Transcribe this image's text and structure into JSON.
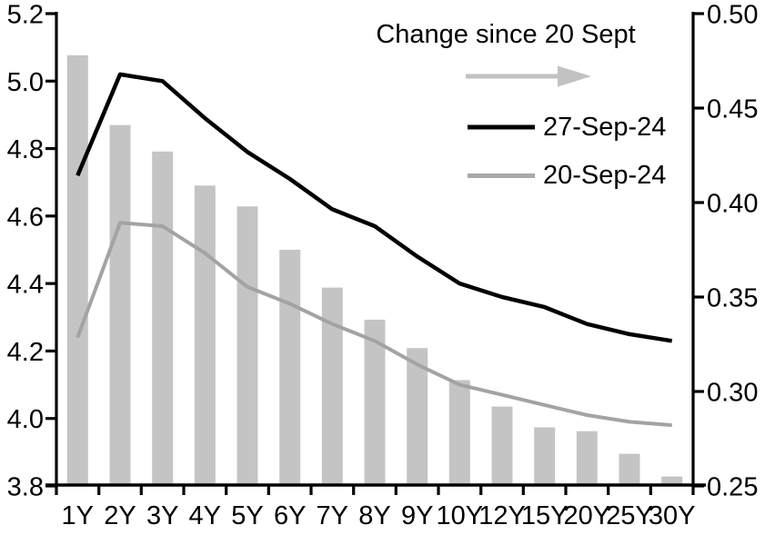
{
  "chart_data": {
    "type": "combo",
    "categories": [
      "1Y",
      "2Y",
      "3Y",
      "4Y",
      "5Y",
      "6Y",
      "7Y",
      "8Y",
      "9Y",
      "10Y",
      "12Y",
      "15Y",
      "20Y",
      "25Y",
      "30Y"
    ],
    "series": [
      {
        "name": "Change since 20 Sept",
        "type": "bar",
        "axis": "right",
        "color": "#c4c4c4",
        "values": [
          0.478,
          0.441,
          0.427,
          0.409,
          0.398,
          0.375,
          0.355,
          0.338,
          0.323,
          0.306,
          0.292,
          0.281,
          0.279,
          0.267,
          0.255
        ]
      },
      {
        "name": "27-Sep-24",
        "type": "line",
        "axis": "left",
        "color": "#000000",
        "values": [
          4.72,
          5.02,
          5.0,
          4.89,
          4.79,
          4.71,
          4.62,
          4.57,
          4.48,
          4.4,
          4.36,
          4.33,
          4.28,
          4.25,
          4.23
        ]
      },
      {
        "name": "20-Sep-24",
        "type": "line",
        "axis": "left",
        "color": "#a3a3a3",
        "values": [
          4.24,
          4.58,
          4.57,
          4.49,
          4.39,
          4.34,
          4.28,
          4.23,
          4.16,
          4.1,
          4.07,
          4.04,
          4.01,
          3.99,
          3.98
        ]
      }
    ],
    "left_axis": {
      "min": 3.8,
      "max": 5.2,
      "tick_step": 0.2,
      "tick_labels": [
        "5.2",
        "5.0",
        "4.8",
        "4.6",
        "4.4",
        "4.2",
        "4.0",
        "3.8"
      ]
    },
    "right_axis": {
      "min": 0.25,
      "max": 0.5,
      "tick_step": 0.05,
      "tick_labels": [
        "0.50",
        "0.45",
        "0.40",
        "0.35",
        "0.30",
        "0.25"
      ]
    },
    "legend": {
      "title": "Change since 20 Sept",
      "arrow_color": "#c2c2c2",
      "position": "top-right-inside",
      "items": [
        {
          "label": "27-Sep-24",
          "color": "#000000"
        },
        {
          "label": "20-Sep-24",
          "color": "#a9a9a9"
        }
      ]
    },
    "grid": false,
    "axis_color": "#000000"
  }
}
